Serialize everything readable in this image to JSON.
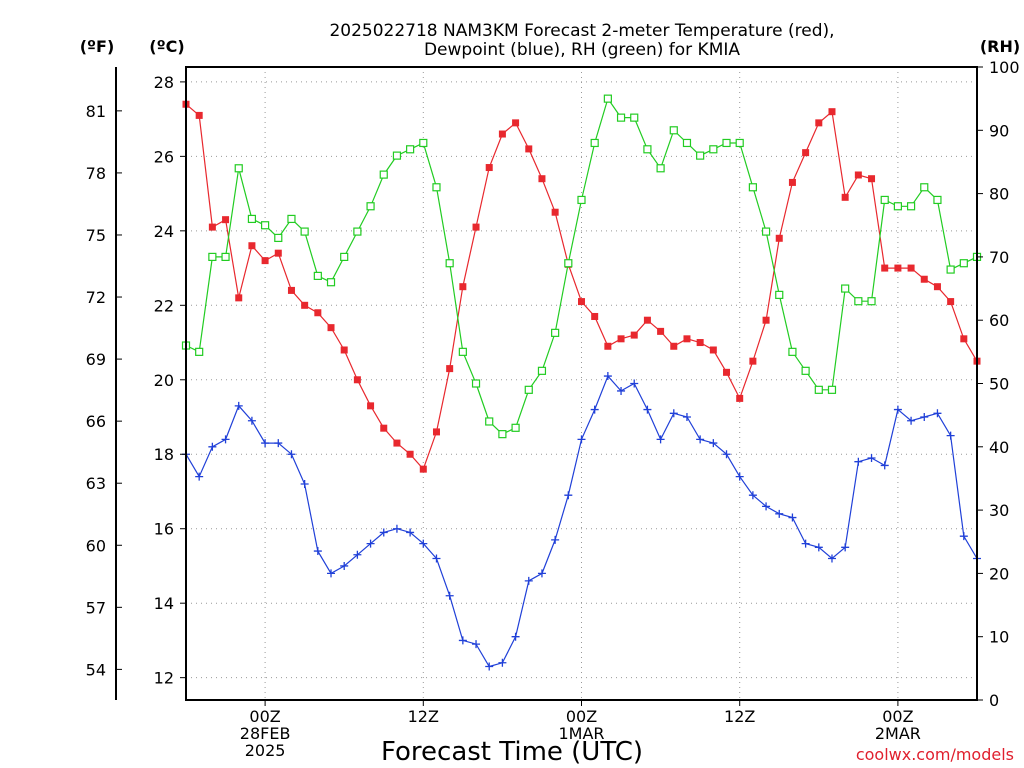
{
  "title_lines": [
    "2025022718 NAM3KM Forecast 2-meter Temperature (red),",
    "Dewpoint (blue), RH (green) for KMIA"
  ],
  "axis_units": {
    "f": "(ºF)",
    "c": "(ºC)",
    "rh": "(RH)"
  },
  "xlabel": "Forecast Time (UTC)",
  "credit": "coolwx.com/models",
  "colors": {
    "temperature": "#e8282e",
    "dewpoint": "#2040d8",
    "rh": "#22cc22"
  },
  "chart_data": {
    "type": "line",
    "x_unit": "forecast hour from 2025-02-27 18Z",
    "x_range": [
      0,
      60
    ],
    "x_ticks": [
      {
        "hour": 6,
        "lines": [
          "00Z",
          "28FEB",
          "2025"
        ]
      },
      {
        "hour": 18,
        "lines": [
          "12Z"
        ]
      },
      {
        "hour": 30,
        "lines": [
          "00Z",
          "1MAR"
        ]
      },
      {
        "hour": 42,
        "lines": [
          "12Z"
        ]
      },
      {
        "hour": 54,
        "lines": [
          "00Z",
          "2MAR"
        ]
      }
    ],
    "y_celsius": {
      "range": [
        11.4,
        28.4
      ],
      "ticks": [
        12,
        14,
        16,
        18,
        20,
        22,
        24,
        26,
        28
      ]
    },
    "y_fahrenheit_ticks": [
      54,
      57,
      60,
      63,
      66,
      69,
      72,
      75,
      78,
      81
    ],
    "y_rh": {
      "range": [
        0,
        100
      ],
      "ticks": [
        0,
        10,
        20,
        30,
        40,
        50,
        60,
        70,
        80,
        90,
        100
      ]
    },
    "grid": true,
    "series": [
      {
        "name": "Temperature",
        "marker": "filled-square",
        "axis": "celsius",
        "values": [
          27.4,
          27.1,
          24.1,
          24.3,
          22.2,
          23.6,
          23.2,
          23.4,
          22.4,
          22.0,
          21.8,
          21.4,
          20.8,
          20.0,
          19.3,
          18.7,
          18.3,
          18.0,
          17.6,
          18.6,
          20.3,
          22.5,
          24.1,
          25.7,
          26.6,
          26.9,
          26.2,
          25.4,
          24.5,
          23.1,
          22.1,
          21.7,
          20.9,
          21.1,
          21.2,
          21.6,
          21.3,
          20.9,
          21.1,
          21.0,
          20.8,
          20.2,
          19.5,
          20.5,
          21.6,
          23.8,
          25.3,
          26.1,
          26.9,
          27.2,
          24.9,
          25.5,
          25.4,
          23.0,
          23.0,
          23.0,
          22.7,
          22.5,
          22.1,
          21.1,
          20.5
        ]
      },
      {
        "name": "Dewpoint",
        "marker": "plus",
        "axis": "celsius",
        "values": [
          18.0,
          17.4,
          18.2,
          18.4,
          19.3,
          18.9,
          18.3,
          18.3,
          18.0,
          17.2,
          15.4,
          14.8,
          15.0,
          15.3,
          15.6,
          15.9,
          16.0,
          15.9,
          15.6,
          15.2,
          14.2,
          13.0,
          12.9,
          12.3,
          12.4,
          13.1,
          14.6,
          14.8,
          15.7,
          16.9,
          18.4,
          19.2,
          20.1,
          19.7,
          19.9,
          19.2,
          18.4,
          19.1,
          19.0,
          18.4,
          18.3,
          18.0,
          17.4,
          16.9,
          16.6,
          16.4,
          16.3,
          15.6,
          15.5,
          15.2,
          15.5,
          17.8,
          17.9,
          17.7,
          19.2,
          18.9,
          19.0,
          19.1,
          18.5,
          15.8,
          15.2
        ]
      },
      {
        "name": "RH",
        "marker": "open-square",
        "axis": "rh",
        "values": [
          56,
          55,
          70,
          70,
          84,
          76,
          75,
          73,
          76,
          74,
          67,
          66,
          70,
          74,
          78,
          83,
          86,
          87,
          88,
          81,
          69,
          55,
          50,
          44,
          42,
          43,
          49,
          52,
          58,
          69,
          79,
          88,
          95,
          92,
          92,
          87,
          84,
          90,
          88,
          86,
          87,
          88,
          88,
          81,
          74,
          64,
          55,
          52,
          49,
          49,
          65,
          63,
          63,
          79,
          78,
          78,
          81,
          79,
          68,
          69,
          70
        ]
      }
    ]
  }
}
